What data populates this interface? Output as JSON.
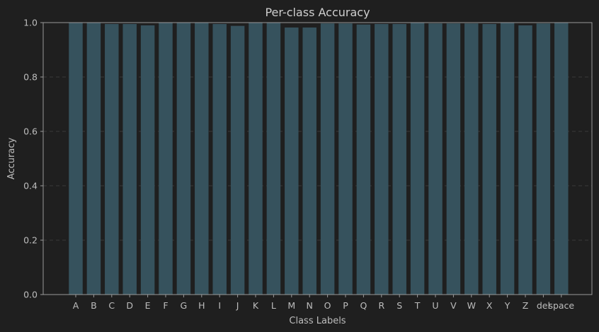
{
  "chart_data": {
    "type": "bar",
    "title": "Per-class Accuracy",
    "xlabel": "Class Labels",
    "ylabel": "Accuracy",
    "ylim": [
      0.0,
      1.0
    ],
    "yticks": [
      "0.0",
      "0.2",
      "0.4",
      "0.6",
      "0.8",
      "1.0"
    ],
    "grid": "horizontal dashed",
    "categories": [
      "A",
      "B",
      "C",
      "D",
      "E",
      "F",
      "G",
      "H",
      "I",
      "J",
      "K",
      "L",
      "M",
      "N",
      "O",
      "P",
      "Q",
      "R",
      "S",
      "T",
      "U",
      "V",
      "W",
      "X",
      "Y",
      "Z",
      "del",
      "space"
    ],
    "values": [
      1.0,
      1.0,
      0.995,
      0.995,
      0.99,
      1.0,
      1.0,
      1.0,
      0.995,
      0.988,
      1.0,
      1.0,
      0.982,
      0.982,
      0.997,
      0.997,
      0.993,
      0.995,
      0.995,
      1.0,
      0.997,
      0.997,
      0.997,
      0.995,
      1.0,
      0.99,
      0.997,
      1.0
    ],
    "colors": {
      "bar": "#36525d",
      "background": "#1f1f1f",
      "axes": "#9a9a9a",
      "grid": "#3a3a3a",
      "text": "#bdbdbd"
    }
  }
}
